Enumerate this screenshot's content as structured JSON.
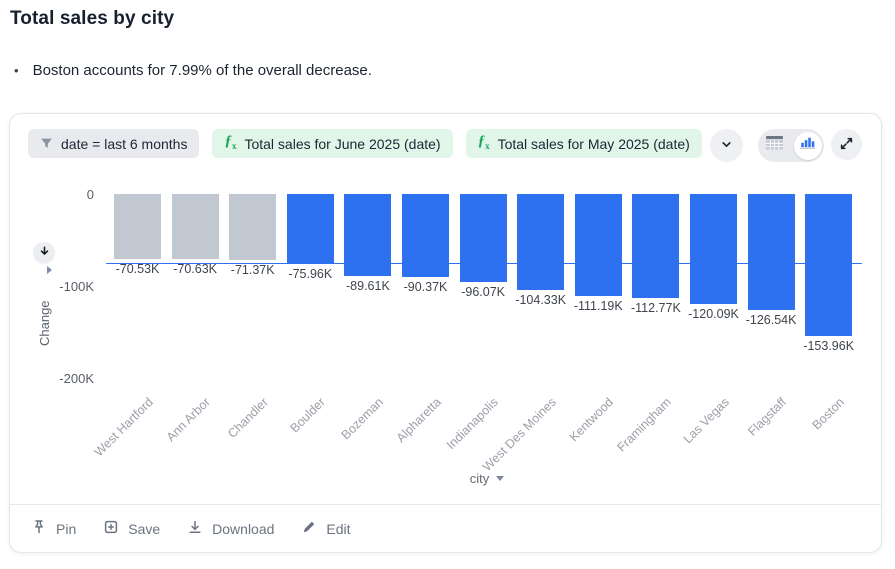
{
  "header": {
    "title": "Total sales by city",
    "insight_bullet": "Boston accounts for 7.99% of the overall decrease."
  },
  "card": {
    "toolbar": {
      "filter_chip": {
        "label": "date = last 6 months"
      },
      "formula_chips": [
        {
          "label": "Total sales for June 2025 (date)"
        },
        {
          "label": "Total sales for May 2025 (date)"
        }
      ]
    },
    "footer": {
      "actions": [
        {
          "label": "Pin"
        },
        {
          "label": "Save"
        },
        {
          "label": "Download"
        },
        {
          "label": "Edit"
        }
      ]
    }
  },
  "chart_data": {
    "type": "bar",
    "title": "Total sales by city",
    "xlabel": "city",
    "ylabel": "Change",
    "categories": [
      "West Hartford",
      "Ann Arbor",
      "Chandler",
      "Boulder",
      "Bozeman",
      "Alpharetta",
      "Indianapolis",
      "West Des Moines",
      "Kentwood",
      "Framingham",
      "Las Vegas",
      "Flagstaff",
      "Boston"
    ],
    "values": [
      -70530,
      -70630,
      -71370,
      -75960,
      -89610,
      -90370,
      -96070,
      -104330,
      -111190,
      -112770,
      -120090,
      -126540,
      -153960
    ],
    "point_labels": [
      "-70.53K",
      "-70.63K",
      "-71.37K",
      "-75.96K",
      "-89.61K",
      "-90.37K",
      "-96.07K",
      "-104.33K",
      "-111.19K",
      "-112.77K",
      "-120.09K",
      "-126.54K",
      "-153.96K"
    ],
    "point_styles": [
      "muted",
      "muted",
      "muted",
      "primary",
      "primary",
      "primary",
      "primary",
      "primary",
      "primary",
      "primary",
      "primary",
      "primary",
      "primary"
    ],
    "yticks": [
      {
        "label": "0",
        "value": 0
      },
      {
        "label": "-100K",
        "value": -100000
      },
      {
        "label": "-200K",
        "value": -200000
      }
    ],
    "ylim": [
      -200000,
      0
    ],
    "reference_line": -75500,
    "colors": {
      "primary": "#2E71F0",
      "muted": "#C1C8D2"
    },
    "legend": "none",
    "grid": "off"
  }
}
